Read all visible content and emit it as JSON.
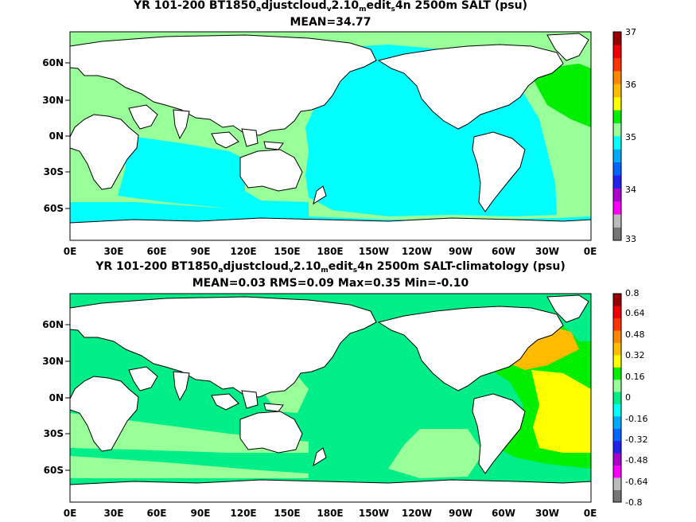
{
  "panels": [
    {
      "title_pre": "YR 101-200 BT1850",
      "title_sub1": "a",
      "title_mid1": "djustcloud",
      "title_sub2": "v",
      "title_mid2": "2.10",
      "title_sub3": "m",
      "title_mid3": "edit",
      "title_sub4": "s",
      "title_post": "4n 2500m SALT (psu)",
      "stats": "MEAN=34.77",
      "lat_labels": [
        "60N",
        "30N",
        "0N",
        "30S",
        "60S"
      ],
      "lon_labels": [
        "0E",
        "30E",
        "60E",
        "90E",
        "120E",
        "150E",
        "180E",
        "150W",
        "120W",
        "90W",
        "60W",
        "30W",
        "0E"
      ],
      "colorbar_labels": [
        "37",
        "36",
        "35",
        "34",
        "33"
      ],
      "colorbar_colors": [
        "#777777",
        "#bbbbbb",
        "#ff00ff",
        "#aa00cc",
        "#2222ee",
        "#0066ff",
        "#00aaff",
        "#00ffff",
        "#99ff99",
        "#00ee00",
        "#ffff00",
        "#ffbb00",
        "#ff8800",
        "#ff3300",
        "#ee0000",
        "#990000"
      ]
    },
    {
      "title_pre": "YR 101-200 BT1850",
      "title_sub1": "a",
      "title_mid1": "djustcloud",
      "title_sub2": "v",
      "title_mid2": "2.10",
      "title_sub3": "m",
      "title_mid3": "edit",
      "title_sub4": "s",
      "title_post": "4n 2500m SALT-climatology (psu)",
      "stats": "MEAN=0.03   RMS=0.09   Max=0.35   Min=-0.10",
      "lat_labels": [
        "60N",
        "30N",
        "0N",
        "30S",
        "60S"
      ],
      "lon_labels": [
        "0E",
        "30E",
        "60E",
        "90E",
        "120E",
        "150E",
        "180E",
        "150W",
        "120W",
        "90W",
        "60W",
        "30W",
        "0E"
      ],
      "colorbar_labels": [
        "0.8",
        "0.64",
        "0.48",
        "0.32",
        "0.16",
        "0",
        "-0.16",
        "-0.32",
        "-0.48",
        "-0.64",
        "-0.8"
      ],
      "colorbar_colors": [
        "#777777",
        "#bbbbbb",
        "#ff00ff",
        "#aa00cc",
        "#2222ee",
        "#0066ff",
        "#00aaff",
        "#00ffff",
        "#00ee88",
        "#99ff99",
        "#00ee00",
        "#ffff00",
        "#ffbb00",
        "#ff8800",
        "#ff3300",
        "#ee0000",
        "#990000"
      ]
    }
  ]
}
